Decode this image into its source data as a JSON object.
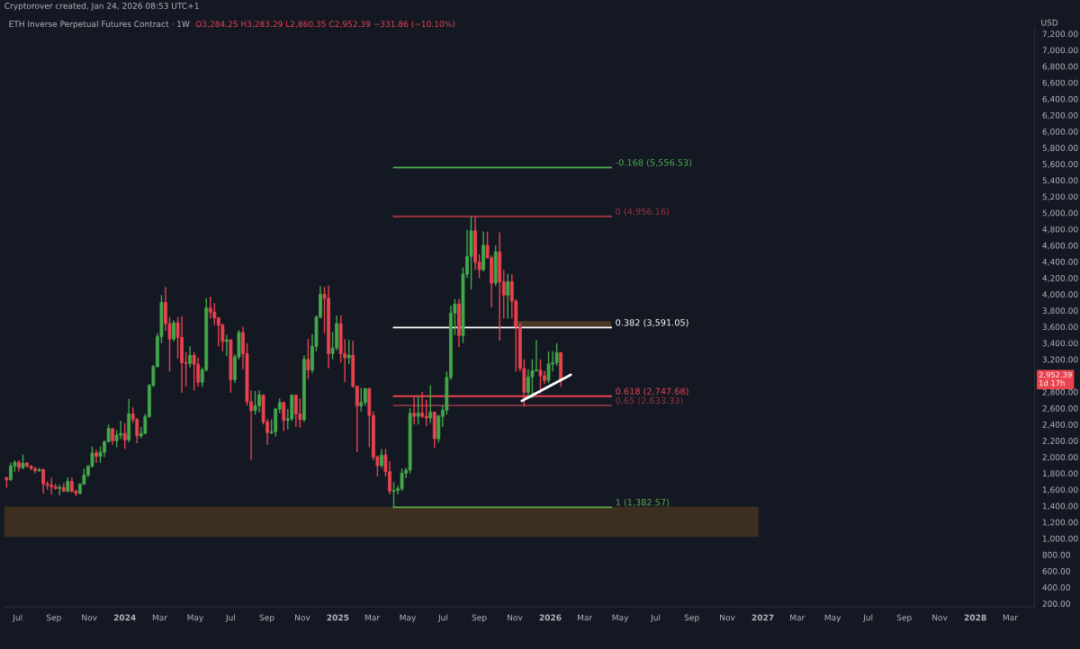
{
  "chart_data": {
    "type": "candlestick",
    "title": "ETH Inverse Perpetual Futures Contract · 1W",
    "subtitle": "O3,284.25 H3,283.29 L2,860.35 C2,952.39 −331.86 (−10.10%)",
    "ylabel": "USD",
    "annotations": [
      "Cryptorover created, Jan 24, 2026 08:53 UTC+1",
      {
        "text": "2,952.39\n1d 17h",
        "y": 2952.39
      }
    ],
    "x": [
      "2023-06-12",
      "2023-06-19",
      "2023-06-26",
      "2023-07-03",
      "2023-07-10",
      "2023-07-17",
      "2023-07-24",
      "2023-07-31",
      "2023-08-07",
      "2023-08-14",
      "2023-08-21",
      "2023-08-28",
      "2023-09-04",
      "2023-09-11",
      "2023-09-18",
      "2023-09-25",
      "2023-10-02",
      "2023-10-09",
      "2023-10-16",
      "2023-10-23",
      "2023-10-30",
      "2023-11-06",
      "2023-11-13",
      "2023-11-20",
      "2023-11-27",
      "2023-12-04",
      "2023-12-11",
      "2023-12-18",
      "2023-12-25",
      "2024-01-01",
      "2024-01-08",
      "2024-01-15",
      "2024-01-22",
      "2024-01-29",
      "2024-02-05",
      "2024-02-12",
      "2024-02-19",
      "2024-02-26",
      "2024-03-04",
      "2024-03-11",
      "2024-03-18",
      "2024-03-25",
      "2024-04-01",
      "2024-04-08",
      "2024-04-15",
      "2024-04-22",
      "2024-04-29",
      "2024-05-06",
      "2024-05-13",
      "2024-05-20",
      "2024-05-27",
      "2024-06-03",
      "2024-06-10",
      "2024-06-17",
      "2024-06-24",
      "2024-07-01",
      "2024-07-08",
      "2024-07-15",
      "2024-07-22",
      "2024-07-29",
      "2024-08-05",
      "2024-08-12",
      "2024-08-19",
      "2024-08-26",
      "2024-09-02",
      "2024-09-09",
      "2024-09-16",
      "2024-09-23",
      "2024-09-30",
      "2024-10-07",
      "2024-10-14",
      "2024-10-21",
      "2024-10-28",
      "2024-11-04",
      "2024-11-11",
      "2024-11-18",
      "2024-11-25",
      "2024-12-02",
      "2024-12-09",
      "2024-12-16",
      "2024-12-23",
      "2024-12-30",
      "2025-01-06",
      "2025-01-13",
      "2025-01-20",
      "2025-01-27",
      "2025-02-03",
      "2025-02-10",
      "2025-02-17",
      "2025-02-24",
      "2025-03-03",
      "2025-03-10",
      "2025-03-17",
      "2025-03-24",
      "2025-03-31",
      "2025-04-07",
      "2025-04-14",
      "2025-04-21",
      "2025-04-28",
      "2025-05-05",
      "2025-05-12",
      "2025-05-19",
      "2025-05-26",
      "2025-06-02",
      "2025-06-09",
      "2025-06-16",
      "2025-06-23",
      "2025-06-30",
      "2025-07-07",
      "2025-07-14",
      "2025-07-21",
      "2025-07-28",
      "2025-08-04",
      "2025-08-11",
      "2025-08-18",
      "2025-08-25",
      "2025-09-01",
      "2025-09-08",
      "2025-09-15",
      "2025-09-22",
      "2025-09-29",
      "2025-10-06",
      "2025-10-13",
      "2025-10-20",
      "2025-10-27",
      "2025-11-03",
      "2025-11-10",
      "2025-11-17",
      "2025-11-24",
      "2025-12-01",
      "2025-12-08",
      "2025-12-15",
      "2025-12-22",
      "2025-12-29",
      "2026-01-05",
      "2026-01-12",
      "2026-01-19"
    ],
    "ohlc": [
      [
        1745,
        1760,
        1625,
        1720
      ],
      [
        1720,
        1930,
        1710,
        1890
      ],
      [
        1890,
        1960,
        1820,
        1935
      ],
      [
        1935,
        1960,
        1820,
        1870
      ],
      [
        1870,
        2030,
        1850,
        1925
      ],
      [
        1925,
        1940,
        1870,
        1890
      ],
      [
        1890,
        1900,
        1840,
        1860
      ],
      [
        1860,
        1880,
        1800,
        1830
      ],
      [
        1830,
        1870,
        1820,
        1845
      ],
      [
        1845,
        1860,
        1550,
        1670
      ],
      [
        1670,
        1700,
        1600,
        1655
      ],
      [
        1655,
        1745,
        1540,
        1635
      ],
      [
        1635,
        1670,
        1600,
        1615
      ],
      [
        1615,
        1660,
        1530,
        1625
      ],
      [
        1625,
        1680,
        1570,
        1580
      ],
      [
        1580,
        1750,
        1570,
        1700
      ],
      [
        1700,
        1750,
        1560,
        1580
      ],
      [
        1580,
        1600,
        1520,
        1555
      ],
      [
        1555,
        1680,
        1540,
        1665
      ],
      [
        1665,
        1860,
        1660,
        1780
      ],
      [
        1780,
        1900,
        1750,
        1890
      ],
      [
        1890,
        2130,
        1870,
        2050
      ],
      [
        2050,
        2090,
        1930,
        2010
      ],
      [
        2010,
        2130,
        1930,
        2060
      ],
      [
        2060,
        2200,
        2000,
        2190
      ],
      [
        2190,
        2400,
        2180,
        2350
      ],
      [
        2350,
        2350,
        2150,
        2200
      ],
      [
        2200,
        2330,
        2120,
        2270
      ],
      [
        2270,
        2445,
        2220,
        2290
      ],
      [
        2290,
        2420,
        2100,
        2210
      ],
      [
        2210,
        2715,
        2180,
        2530
      ],
      [
        2530,
        2610,
        2420,
        2460
      ],
      [
        2460,
        2480,
        2170,
        2260
      ],
      [
        2260,
        2370,
        2230,
        2290
      ],
      [
        2290,
        2530,
        2280,
        2500
      ],
      [
        2500,
        2900,
        2480,
        2880
      ],
      [
        2880,
        3130,
        2860,
        3110
      ],
      [
        3110,
        3520,
        3100,
        3480
      ],
      [
        3480,
        3990,
        3400,
        3900
      ],
      [
        3900,
        4090,
        3550,
        3640
      ],
      [
        3640,
        3720,
        3050,
        3450
      ],
      [
        3450,
        3680,
        3420,
        3650
      ],
      [
        3650,
        3720,
        3210,
        3470
      ],
      [
        3470,
        3730,
        2790,
        3160
      ],
      [
        3160,
        3290,
        2870,
        3150
      ],
      [
        3150,
        3360,
        3100,
        3250
      ],
      [
        3250,
        3290,
        2820,
        3140
      ],
      [
        3140,
        3220,
        2860,
        2920
      ],
      [
        2920,
        3100,
        2860,
        3070
      ],
      [
        3070,
        3950,
        3050,
        3830
      ],
      [
        3830,
        3970,
        3700,
        3780
      ],
      [
        3780,
        3890,
        3620,
        3710
      ],
      [
        3710,
        3720,
        3360,
        3620
      ],
      [
        3620,
        3640,
        3300,
        3420
      ],
      [
        3420,
        3500,
        3240,
        3440
      ],
      [
        3440,
        3450,
        2790,
        2950
      ],
      [
        2950,
        3260,
        2910,
        3230
      ],
      [
        3230,
        3560,
        3200,
        3530
      ],
      [
        3530,
        3600,
        3080,
        3270
      ],
      [
        3270,
        3400,
        2630,
        2680
      ],
      [
        2680,
        2820,
        1970,
        2570
      ],
      [
        2570,
        2810,
        2520,
        2630
      ],
      [
        2630,
        2820,
        2550,
        2760
      ],
      [
        2760,
        2770,
        2400,
        2430
      ],
      [
        2430,
        2470,
        2150,
        2300
      ],
      [
        2300,
        2460,
        2280,
        2310
      ],
      [
        2310,
        2600,
        2250,
        2590
      ],
      [
        2590,
        2720,
        2540,
        2670
      ],
      [
        2670,
        2680,
        2320,
        2450
      ],
      [
        2450,
        2590,
        2340,
        2470
      ],
      [
        2470,
        2770,
        2440,
        2760
      ],
      [
        2760,
        2770,
        2370,
        2530
      ],
      [
        2530,
        2720,
        2360,
        2460
      ],
      [
        2460,
        3250,
        2430,
        3200
      ],
      [
        3200,
        3450,
        2960,
        3070
      ],
      [
        3070,
        3510,
        3030,
        3360
      ],
      [
        3360,
        3740,
        3300,
        3720
      ],
      [
        3720,
        4100,
        3700,
        4000
      ],
      [
        4000,
        4090,
        3520,
        3950
      ],
      [
        3950,
        4110,
        3090,
        3270
      ],
      [
        3270,
        3540,
        3200,
        3340
      ],
      [
        3340,
        3740,
        3310,
        3640
      ],
      [
        3640,
        3740,
        3160,
        3270
      ],
      [
        3270,
        3450,
        2920,
        3220
      ],
      [
        3220,
        3440,
        3140,
        3250
      ],
      [
        3250,
        3430,
        2850,
        2870
      ],
      [
        2870,
        2870,
        2060,
        2630
      ],
      [
        2630,
        2850,
        2560,
        2670
      ],
      [
        2670,
        2850,
        2630,
        2840
      ],
      [
        2840,
        2850,
        2120,
        2510
      ],
      [
        2510,
        2560,
        1960,
        2000
      ],
      [
        2000,
        2020,
        1760,
        1895
      ],
      [
        1895,
        2100,
        1870,
        2023
      ],
      [
        2023,
        2100,
        1760,
        1820
      ],
      [
        1820,
        1950,
        1540,
        1581
      ],
      [
        1581,
        1690,
        1382.57,
        1590
      ],
      [
        1590,
        1650,
        1540,
        1610
      ],
      [
        1610,
        1860,
        1580,
        1802
      ],
      [
        1802,
        1870,
        1740,
        1840
      ],
      [
        1840,
        2600,
        1800,
        2537
      ],
      [
        2537,
        2740,
        2400,
        2500
      ],
      [
        2500,
        2740,
        2400,
        2540
      ],
      [
        2540,
        2800,
        2480,
        2500
      ],
      [
        2500,
        2700,
        2380,
        2480
      ],
      [
        2480,
        2880,
        2420,
        2550
      ],
      [
        2550,
        2560,
        2110,
        2225
      ],
      [
        2225,
        2520,
        2180,
        2500
      ],
      [
        2500,
        2640,
        2370,
        2574
      ],
      [
        2574,
        3050,
        2520,
        2978
      ],
      [
        2978,
        3860,
        2950,
        3768
      ],
      [
        3768,
        3940,
        3500,
        3879
      ],
      [
        3879,
        3940,
        3350,
        3492
      ],
      [
        3492,
        4330,
        3400,
        4246
      ],
      [
        4246,
        4790,
        4200,
        4466
      ],
      [
        4466,
        4956.16,
        4060,
        4779
      ],
      [
        4779,
        4950,
        4300,
        4393
      ],
      [
        4393,
        4490,
        4200,
        4301
      ],
      [
        4301,
        4770,
        4280,
        4602
      ],
      [
        4602,
        4770,
        4440,
        4448
      ],
      [
        4448,
        4480,
        3840,
        4136
      ],
      [
        4136,
        4600,
        4100,
        4521
      ],
      [
        4521,
        4760,
        3430,
        4154
      ],
      [
        4154,
        4300,
        3700,
        3989
      ],
      [
        3989,
        4250,
        3700,
        4154
      ],
      [
        4154,
        4250,
        3700,
        3915
      ],
      [
        3915,
        3940,
        3050,
        3603
      ],
      [
        3603,
        3650,
        3050,
        3088
      ],
      [
        3088,
        3200,
        2620,
        2794
      ],
      [
        2794,
        3080,
        2720,
        2985
      ],
      [
        2985,
        3200,
        2720,
        3059
      ],
      [
        3059,
        3440,
        3050,
        3070
      ],
      [
        3070,
        3200,
        2780,
        2997
      ],
      [
        2997,
        3060,
        2900,
        2942
      ],
      [
        2942,
        3300,
        2910,
        3143
      ],
      [
        3143,
        3300,
        3050,
        3160
      ],
      [
        3160,
        3400,
        3120,
        3283
      ],
      [
        3284.25,
        3284.25,
        2860.35,
        2952.39
      ]
    ],
    "colors": [
      "#e8434f",
      "#43a84a",
      "#43a84a",
      "#e8434f",
      "#43a84a",
      "#e8434f",
      "#e8434f",
      "#e8434f",
      "#43a84a",
      "#e8434f",
      "#e8434f",
      "#e8434f",
      "#e8434f",
      "#43a84a",
      "#e8434f",
      "#43a84a",
      "#e8434f",
      "#e8434f",
      "#43a84a",
      "#43a84a",
      "#43a84a",
      "#43a84a",
      "#e8434f",
      "#43a84a",
      "#43a84a",
      "#43a84a",
      "#e8434f",
      "#43a84a",
      "#43a84a",
      "#e8434f",
      "#43a84a",
      "#e8434f",
      "#e8434f",
      "#43a84a",
      "#43a84a",
      "#43a84a",
      "#43a84a",
      "#43a84a",
      "#43a84a",
      "#e8434f",
      "#e8434f",
      "#43a84a",
      "#e8434f",
      "#e8434f",
      "#e8434f",
      "#43a84a",
      "#e8434f",
      "#e8434f",
      "#43a84a",
      "#43a84a",
      "#e8434f",
      "#e8434f",
      "#e8434f",
      "#e8434f",
      "#43a84a",
      "#e8434f",
      "#43a84a",
      "#43a84a",
      "#e8434f",
      "#e8434f",
      "#e8434f",
      "#43a84a",
      "#43a84a",
      "#e8434f",
      "#e8434f",
      "#43a84a",
      "#43a84a",
      "#43a84a",
      "#e8434f",
      "#43a84a",
      "#43a84a",
      "#e8434f",
      "#e8434f",
      "#43a84a",
      "#e8434f",
      "#43a84a",
      "#43a84a",
      "#43a84a",
      "#e8434f",
      "#e8434f",
      "#43a84a",
      "#43a84a",
      "#e8434f",
      "#e8434f",
      "#43a84a",
      "#e8434f",
      "#e8434f",
      "#43a84a",
      "#43a84a",
      "#e8434f",
      "#e8434f",
      "#e8434f",
      "#43a84a",
      "#e8434f",
      "#e8434f",
      "#43a84a",
      "#43a84a",
      "#43a84a",
      "#43a84a",
      "#43a84a",
      "#e8434f",
      "#43a84a",
      "#e8434f",
      "#e8434f",
      "#43a84a",
      "#e8434f",
      "#43a84a",
      "#43a84a",
      "#43a84a",
      "#43a84a",
      "#43a84a",
      "#e8434f",
      "#43a84a",
      "#43a84a",
      "#43a84a",
      "#e8434f",
      "#e8434f",
      "#43a84a",
      "#e8434f",
      "#e8434f",
      "#43a84a",
      "#e8434f",
      "#e8434f",
      "#43a84a",
      "#e8434f",
      "#e8434f",
      "#e8434f",
      "#e8434f",
      "#43a84a",
      "#43a84a",
      "#43a84a",
      "#e8434f",
      "#e8434f",
      "#43a84a",
      "#43a84a",
      "#43a84a",
      "#e8434f"
    ],
    "series": [
      {
        "type": "line",
        "x": [
          "2025-11-13",
          "2026-02-05"
        ],
        "values": [
          2690,
          3010
        ],
        "color": "#ffffff"
      }
    ],
    "ref_lines": [
      {
        "axis": "y",
        "value": 5556.53,
        "label": "-0.168 (5,556.53)",
        "color": "#4caf50"
      },
      {
        "axis": "y",
        "value": 4956.16,
        "label": "0 (4,956.16)",
        "color": "#9c3440"
      },
      {
        "axis": "y",
        "value": 3591.05,
        "label": "0.382 (3,591.05)",
        "color": "#ffffff"
      },
      {
        "axis": "y",
        "value": 2747.68,
        "label": "0.618 (2,747.68)",
        "color": "#e8434f"
      },
      {
        "axis": "y",
        "value": 2633.33,
        "label": "0.65 (2,633.33)",
        "color": "#8e3440"
      },
      {
        "axis": "y",
        "value": 1382.57,
        "label": "1 (1,382.57)",
        "color": "#5fa84a"
      }
    ],
    "bands": [
      {
        "axis": "y",
        "from": 1020,
        "to": 1390,
        "color": "#3d2f1f"
      },
      {
        "axis": "y",
        "from": 3600,
        "to": 3670,
        "color": "#4a3a25"
      }
    ],
    "xlim": [
      "2023-06-08",
      "2028-04-12"
    ],
    "xticks": [
      {
        "value": "2023-07-01",
        "label": "Jul"
      },
      {
        "value": "2023-09-01",
        "label": "Sep"
      },
      {
        "value": "2023-11-01",
        "label": "Nov"
      },
      {
        "value": "2024-01-01",
        "label": "2024"
      },
      {
        "value": "2024-03-01",
        "label": "Mar"
      },
      {
        "value": "2024-05-01",
        "label": "May"
      },
      {
        "value": "2024-07-01",
        "label": "Jul"
      },
      {
        "value": "2024-09-01",
        "label": "Sep"
      },
      {
        "value": "2024-11-01",
        "label": "Nov"
      },
      {
        "value": "2025-01-01",
        "label": "2025"
      },
      {
        "value": "2025-03-01",
        "label": "Mar"
      },
      {
        "value": "2025-05-01",
        "label": "May"
      },
      {
        "value": "2025-07-01",
        "label": "Jul"
      },
      {
        "value": "2025-09-01",
        "label": "Sep"
      },
      {
        "value": "2025-11-01",
        "label": "Nov"
      },
      {
        "value": "2026-01-01",
        "label": "2026"
      },
      {
        "value": "2026-03-01",
        "label": "Mar"
      },
      {
        "value": "2026-05-01",
        "label": "May"
      },
      {
        "value": "2026-07-01",
        "label": "Jul"
      },
      {
        "value": "2026-09-01",
        "label": "Sep"
      },
      {
        "value": "2026-11-01",
        "label": "Nov"
      },
      {
        "value": "2027-01-01",
        "label": "2027"
      },
      {
        "value": "2027-03-01",
        "label": "Mar"
      },
      {
        "value": "2027-05-01",
        "label": "May"
      },
      {
        "value": "2027-07-01",
        "label": "Jul"
      },
      {
        "value": "2027-09-01",
        "label": "Sep"
      },
      {
        "value": "2027-11-01",
        "label": "Nov"
      },
      {
        "value": "2028-01-01",
        "label": "2028"
      },
      {
        "value": "2028-03-01",
        "label": "Mar"
      }
    ],
    "ylim": [
      160,
      7280
    ],
    "yticks": [
      {
        "value": 200,
        "label": "200.00"
      },
      {
        "value": 400,
        "label": "400.00"
      },
      {
        "value": 600,
        "label": "600.00"
      },
      {
        "value": 800,
        "label": "800.00"
      },
      {
        "value": 1000,
        "label": "1,000.00"
      },
      {
        "value": 1200,
        "label": "1,200.00"
      },
      {
        "value": 1400,
        "label": "1,400.00"
      },
      {
        "value": 1600,
        "label": "1,600.00"
      },
      {
        "value": 1800,
        "label": "1,800.00"
      },
      {
        "value": 2000,
        "label": "2,000.00"
      },
      {
        "value": 2200,
        "label": "2,200.00"
      },
      {
        "value": 2400,
        "label": "2,400.00"
      },
      {
        "value": 2600,
        "label": "2,600.00"
      },
      {
        "value": 2800,
        "label": "2,800.00"
      },
      {
        "value": 3200,
        "label": "3,200.00"
      },
      {
        "value": 3400,
        "label": "3,400.00"
      },
      {
        "value": 3600,
        "label": "3,600.00"
      },
      {
        "value": 3800,
        "label": "3,800.00"
      },
      {
        "value": 4000,
        "label": "4,000.00"
      },
      {
        "value": 4200,
        "label": "4,200.00"
      },
      {
        "value": 4400,
        "label": "4,400.00"
      },
      {
        "value": 4600,
        "label": "4,600.00"
      },
      {
        "value": 4800,
        "label": "4,800.00"
      },
      {
        "value": 5000,
        "label": "5,000.00"
      },
      {
        "value": 5200,
        "label": "5,200.00"
      },
      {
        "value": 5400,
        "label": "5,400.00"
      },
      {
        "value": 5600,
        "label": "5,600.00"
      },
      {
        "value": 5800,
        "label": "5,800.00"
      },
      {
        "value": 6000,
        "label": "6,000.00"
      },
      {
        "value": 6200,
        "label": "6,200.00"
      },
      {
        "value": 6400,
        "label": "6,400.00"
      },
      {
        "value": 6600,
        "label": "6,600.00"
      },
      {
        "value": 6800,
        "label": "6,800.00"
      },
      {
        "value": 7000,
        "label": "7,000.00"
      },
      {
        "value": 7200,
        "label": "7,200.00"
      }
    ]
  }
}
